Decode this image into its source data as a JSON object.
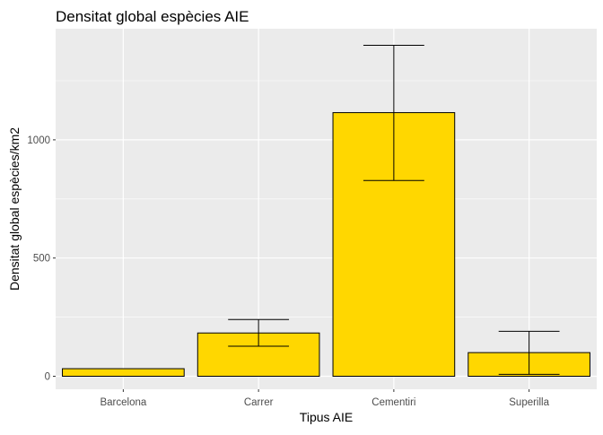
{
  "chart_data": {
    "type": "bar",
    "title": "Densitat global espècies AIE",
    "xlabel": "Tipus AIE",
    "ylabel": "Densitat global espècies/km2",
    "categories": [
      "Barcelona",
      "Carrer",
      "Cementiri",
      "Superilla"
    ],
    "values": [
      32,
      183,
      1115,
      100
    ],
    "error_low": [
      null,
      127,
      828,
      8
    ],
    "error_high": [
      null,
      240,
      1400,
      190
    ],
    "ylim": [
      -55,
      1470
    ],
    "y_ticks": [
      0,
      500,
      1000
    ],
    "y_tick_labels": [
      "0",
      "500",
      "1000"
    ],
    "grid": true,
    "legend": "none",
    "colors": {
      "bar_fill": "#FFD700",
      "bar_stroke": "#000000",
      "panel_background": "#EBEBEB",
      "grid": "#FFFFFF",
      "tick_label": "#4D4D4D"
    }
  }
}
